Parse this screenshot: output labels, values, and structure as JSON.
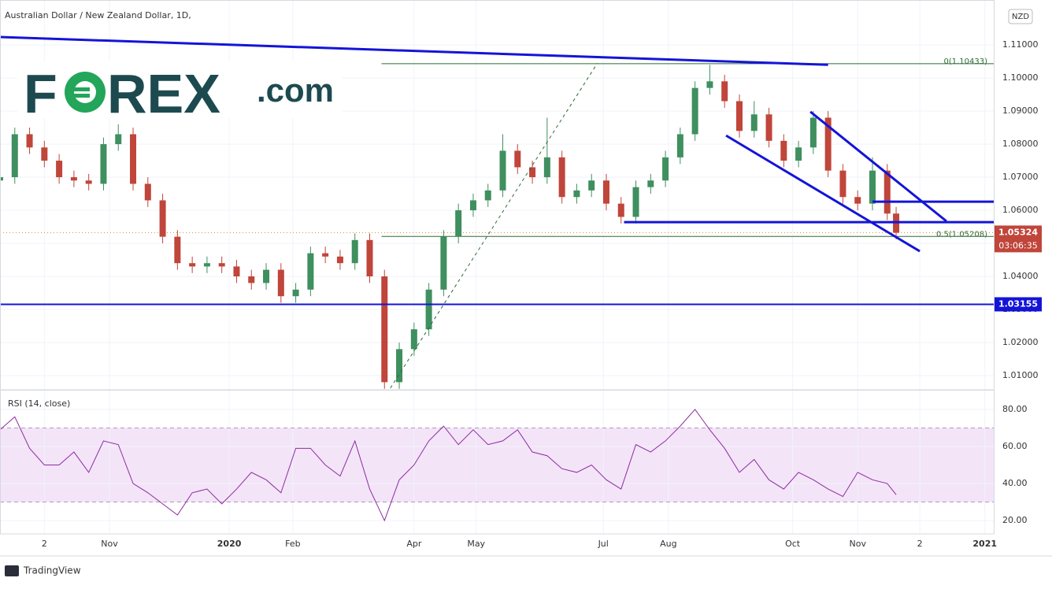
{
  "logo": {
    "left": "F",
    "right": "REX",
    "suffix": ".com"
  },
  "footer": "TradingView",
  "chart_data": {
    "type": "candlestick",
    "title": "Australian Dollar / New Zealand Dollar, 1D,",
    "currency": "NZD",
    "x": [
      0,
      5,
      10,
      15,
      20,
      25,
      30,
      35,
      40,
      45,
      50,
      55,
      60,
      65,
      70,
      75,
      80,
      85,
      90,
      95,
      100,
      105,
      110,
      115,
      120,
      125,
      130,
      135,
      140,
      145,
      150,
      155,
      160,
      165,
      170,
      175,
      180,
      185,
      190,
      195,
      200,
      205,
      210,
      215,
      220,
      225,
      230,
      235,
      240,
      245,
      250,
      255,
      260,
      265,
      270,
      275,
      280,
      285,
      290,
      295,
      300,
      303
    ],
    "open": [
      1.069,
      1.07,
      1.083,
      1.079,
      1.075,
      1.07,
      1.069,
      1.068,
      1.08,
      1.083,
      1.068,
      1.063,
      1.052,
      1.044,
      1.043,
      1.044,
      1.043,
      1.04,
      1.038,
      1.042,
      1.034,
      1.036,
      1.047,
      1.046,
      1.044,
      1.051,
      1.04,
      1.008,
      1.018,
      1.024,
      1.036,
      1.052,
      1.06,
      1.063,
      1.066,
      1.078,
      1.073,
      1.07,
      1.076,
      1.064,
      1.066,
      1.069,
      1.062,
      1.058,
      1.067,
      1.069,
      1.076,
      1.083,
      1.097,
      1.099,
      1.093,
      1.084,
      1.089,
      1.081,
      1.075,
      1.079,
      1.088,
      1.072,
      1.064,
      1.062,
      1.072,
      1.059
    ],
    "high": [
      1.072,
      1.085,
      1.085,
      1.081,
      1.077,
      1.072,
      1.071,
      1.082,
      1.086,
      1.085,
      1.07,
      1.065,
      1.054,
      1.046,
      1.046,
      1.046,
      1.045,
      1.042,
      1.044,
      1.044,
      1.038,
      1.049,
      1.049,
      1.048,
      1.053,
      1.053,
      1.042,
      1.02,
      1.026,
      1.038,
      1.054,
      1.062,
      1.065,
      1.068,
      1.083,
      1.08,
      1.075,
      1.088,
      1.078,
      1.068,
      1.071,
      1.071,
      1.064,
      1.069,
      1.071,
      1.078,
      1.085,
      1.099,
      1.104,
      1.101,
      1.095,
      1.093,
      1.091,
      1.083,
      1.081,
      1.09,
      1.09,
      1.074,
      1.066,
      1.076,
      1.074,
      1.061
    ],
    "low": [
      1.067,
      1.068,
      1.077,
      1.073,
      1.068,
      1.067,
      1.066,
      1.066,
      1.078,
      1.066,
      1.061,
      1.05,
      1.042,
      1.041,
      1.041,
      1.041,
      1.038,
      1.036,
      1.036,
      1.032,
      1.032,
      1.034,
      1.044,
      1.042,
      1.042,
      1.038,
      1.006,
      1.006,
      1.016,
      1.022,
      1.034,
      1.05,
      1.058,
      1.061,
      1.064,
      1.071,
      1.068,
      1.068,
      1.062,
      1.062,
      1.064,
      1.06,
      1.056,
      1.056,
      1.065,
      1.067,
      1.074,
      1.081,
      1.095,
      1.091,
      1.082,
      1.082,
      1.079,
      1.073,
      1.073,
      1.077,
      1.07,
      1.062,
      1.06,
      1.06,
      1.057,
      1.0512
    ],
    "close": [
      1.07,
      1.083,
      1.079,
      1.075,
      1.07,
      1.069,
      1.068,
      1.08,
      1.083,
      1.068,
      1.063,
      1.052,
      1.044,
      1.043,
      1.044,
      1.043,
      1.04,
      1.038,
      1.042,
      1.034,
      1.036,
      1.047,
      1.046,
      1.044,
      1.051,
      1.04,
      1.008,
      1.018,
      1.024,
      1.036,
      1.052,
      1.06,
      1.063,
      1.066,
      1.078,
      1.073,
      1.07,
      1.076,
      1.064,
      1.066,
      1.069,
      1.062,
      1.058,
      1.067,
      1.069,
      1.076,
      1.083,
      1.097,
      1.099,
      1.093,
      1.084,
      1.089,
      1.081,
      1.075,
      1.079,
      1.088,
      1.072,
      1.064,
      1.062,
      1.072,
      1.059,
      1.0532
    ],
    "up_color": "#3f8f5f",
    "down_color": "#c0453a",
    "xlim": [
      0,
      336
    ],
    "ylim": [
      1.0057,
      1.1236
    ],
    "yticks": [
      {
        "value": 1.01,
        "label": "1.01000"
      },
      {
        "value": 1.02,
        "label": "1.02000"
      },
      {
        "value": 1.03,
        "label": "1.03000"
      },
      {
        "value": 1.04,
        "label": "1.04000"
      },
      {
        "value": 1.05,
        "label": "1.05000"
      },
      {
        "value": 1.06,
        "label": "1.06000"
      },
      {
        "value": 1.07,
        "label": "1.07000"
      },
      {
        "value": 1.08,
        "label": "1.08000"
      },
      {
        "value": 1.09,
        "label": "1.09000"
      },
      {
        "value": 1.1,
        "label": "1.10000"
      },
      {
        "value": 1.11,
        "label": "1.11000"
      }
    ],
    "xticks": [
      {
        "value": 15,
        "label": "2"
      },
      {
        "value": 37,
        "label": "Nov"
      },
      {
        "value": 77.5,
        "label": "2020"
      },
      {
        "value": 99,
        "label": "Feb"
      },
      {
        "value": 140,
        "label": "Apr"
      },
      {
        "value": 161,
        "label": "May"
      },
      {
        "value": 204,
        "label": "Jul"
      },
      {
        "value": 226,
        "label": "Aug"
      },
      {
        "value": 268,
        "label": "Oct"
      },
      {
        "value": 290,
        "label": "Nov"
      },
      {
        "value": 311,
        "label": "2"
      },
      {
        "value": 333,
        "label": "2021"
      }
    ],
    "grid": true,
    "last_price": 1.05324,
    "countdown": "03:06:35",
    "hlines": [
      {
        "value": 1.03155,
        "color": "#1414d8"
      }
    ],
    "fib": {
      "start": 129,
      "color": "#2e6b36",
      "levels": [
        {
          "value": 1.10433,
          "label": "0(1.10433)"
        },
        {
          "value": 1.05208,
          "label": "0.5(1.05208)"
        }
      ]
    },
    "trendlines": [
      {
        "x": [
          0,
          280
        ],
        "y": [
          1.1124,
          1.104
        ],
        "color": "#1414d8"
      },
      {
        "x": [
          245.5,
          311
        ],
        "y": [
          1.0826,
          1.0476
        ],
        "color": "#1414d8"
      },
      {
        "x": [
          274,
          320
        ],
        "y": [
          1.0898,
          1.0567
        ],
        "color": "#1414d8"
      },
      {
        "x": [
          211,
          336
        ],
        "y": [
          1.0564,
          1.0564
        ],
        "color": "#1414d8"
      },
      {
        "x": [
          295,
          336
        ],
        "y": [
          1.0626,
          1.0626
        ],
        "color": "#1414d8"
      },
      {
        "x": [
          132,
          202
        ],
        "y": [
          1.0062,
          1.1045
        ],
        "color": "#2e6b36",
        "dashed": true
      }
    ],
    "rsi": {
      "type": "line",
      "title": "RSI (14, close)",
      "color": "#8e2ca0",
      "band": [
        30,
        70
      ],
      "values": [
        69,
        76,
        59,
        50,
        50,
        57,
        46,
        63,
        61,
        40,
        35,
        29,
        23,
        35,
        37,
        29,
        37,
        46,
        42,
        35,
        59,
        59,
        50,
        44,
        63,
        37,
        20,
        42,
        50,
        63,
        71,
        61,
        69,
        61,
        63,
        69,
        57,
        55,
        48,
        46,
        50,
        42,
        37,
        61,
        57,
        63,
        71,
        80,
        69,
        59,
        46,
        53,
        42,
        37,
        46,
        42,
        37,
        33,
        46,
        42,
        40,
        34
      ],
      "ylim": [
        12.8,
        90.6
      ],
      "yticks": [
        {
          "value": 20,
          "label": "20.00"
        },
        {
          "value": 40,
          "label": "40.00"
        },
        {
          "value": 60,
          "label": "60.00"
        },
        {
          "value": 80,
          "label": "80.00"
        }
      ]
    }
  }
}
